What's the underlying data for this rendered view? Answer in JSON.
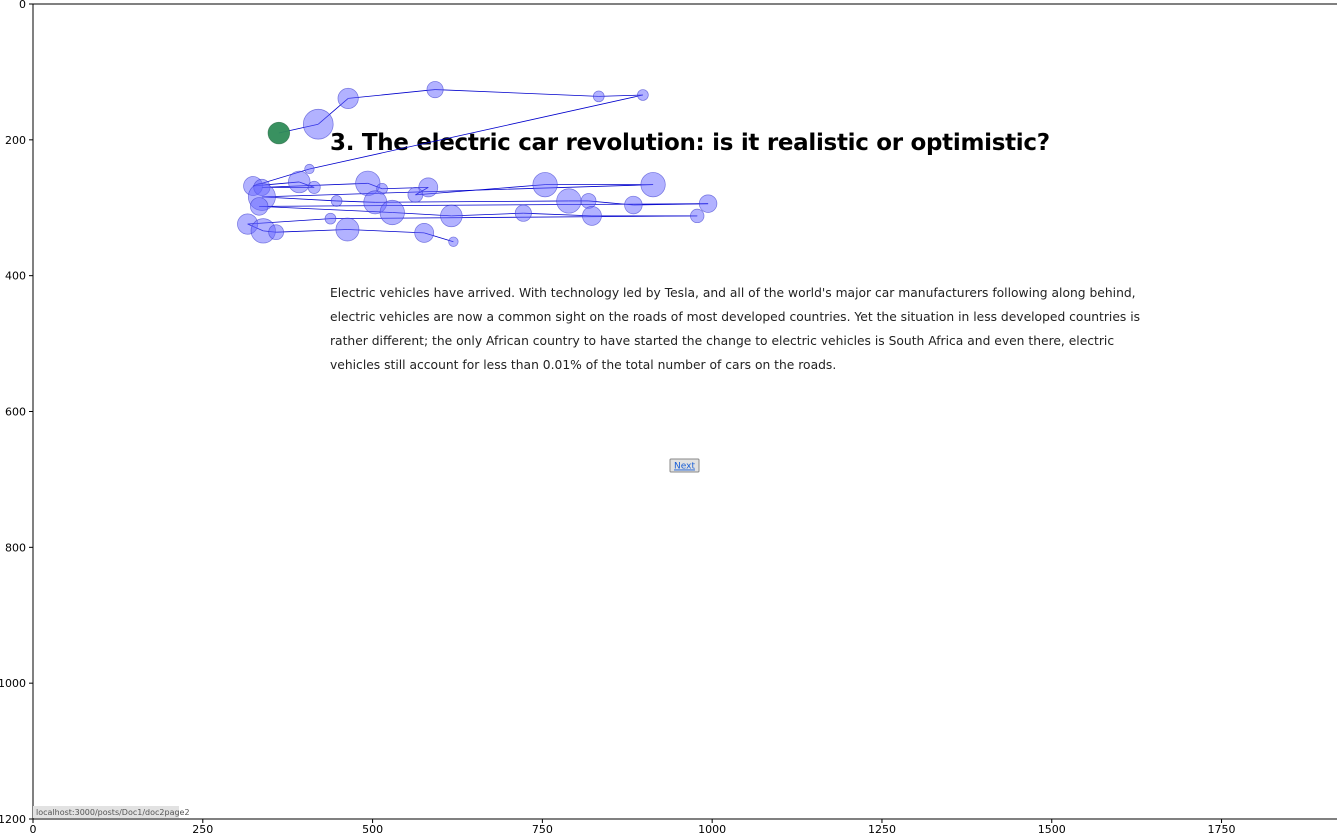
{
  "page": {
    "title": "3. The electric car revolution: is it realistic or optimistic?",
    "paragraph_lines": [
      "Electric vehicles have arrived. With technology led by Tesla, and all of the world's major car manufacturers following along behind,",
      "electric vehicles are now a common sight on the roads of most developed countries. Yet the situation in less developed countries is",
      "rather different; the only African country to have started the change to electric vehicles is South Africa and even there, electric",
      "vehicles still account for less than 0.01% of the total number of cars on the roads."
    ],
    "next_label": "Next",
    "status_url": "localhost:3000/posts/Doc1/doc2page2"
  },
  "chart_data": {
    "type": "scatter",
    "title": "",
    "xlabel": "",
    "ylabel": "",
    "xlim": [
      0,
      1920
    ],
    "ylim": [
      1200,
      0
    ],
    "y_inverted": true,
    "x_ticks": [
      0,
      250,
      500,
      750,
      1000,
      1250,
      1500,
      1750
    ],
    "y_ticks": [
      0,
      200,
      400,
      600,
      800,
      1000,
      1200
    ],
    "grid": false,
    "fixation_color": "#6666ff",
    "highlight_color": "#2e8b57",
    "path_color": "#0000cc",
    "highlight_index": 0,
    "series": [
      {
        "points": [
          {
            "x": 362,
            "y": 190,
            "r": 16
          },
          {
            "x": 420,
            "y": 177,
            "r": 22
          },
          {
            "x": 464,
            "y": 139,
            "r": 15
          },
          {
            "x": 592,
            "y": 126,
            "r": 12
          },
          {
            "x": 833,
            "y": 136,
            "r": 8
          },
          {
            "x": 898,
            "y": 134,
            "r": 8
          },
          {
            "x": 407,
            "y": 243,
            "r": 7
          },
          {
            "x": 324,
            "y": 268,
            "r": 14
          },
          {
            "x": 392,
            "y": 262,
            "r": 16
          },
          {
            "x": 414,
            "y": 270,
            "r": 9
          },
          {
            "x": 337,
            "y": 270,
            "r": 12
          },
          {
            "x": 493,
            "y": 264,
            "r": 18
          },
          {
            "x": 514,
            "y": 272,
            "r": 8
          },
          {
            "x": 582,
            "y": 270,
            "r": 14
          },
          {
            "x": 563,
            "y": 281,
            "r": 11
          },
          {
            "x": 754,
            "y": 266,
            "r": 18
          },
          {
            "x": 913,
            "y": 266,
            "r": 18
          },
          {
            "x": 337,
            "y": 284,
            "r": 20
          },
          {
            "x": 447,
            "y": 290,
            "r": 8
          },
          {
            "x": 504,
            "y": 292,
            "r": 17
          },
          {
            "x": 789,
            "y": 290,
            "r": 18
          },
          {
            "x": 818,
            "y": 290,
            "r": 11
          },
          {
            "x": 884,
            "y": 296,
            "r": 13
          },
          {
            "x": 994,
            "y": 294,
            "r": 13
          },
          {
            "x": 333,
            "y": 298,
            "r": 13
          },
          {
            "x": 529,
            "y": 307,
            "r": 18
          },
          {
            "x": 616,
            "y": 312,
            "r": 16
          },
          {
            "x": 722,
            "y": 308,
            "r": 12
          },
          {
            "x": 823,
            "y": 312,
            "r": 14
          },
          {
            "x": 978,
            "y": 312,
            "r": 10
          },
          {
            "x": 438,
            "y": 316,
            "r": 8
          },
          {
            "x": 316,
            "y": 324,
            "r": 15
          },
          {
            "x": 339,
            "y": 334,
            "r": 18
          },
          {
            "x": 358,
            "y": 336,
            "r": 11
          },
          {
            "x": 463,
            "y": 332,
            "r": 17
          },
          {
            "x": 576,
            "y": 337,
            "r": 14
          },
          {
            "x": 619,
            "y": 350,
            "r": 7
          }
        ]
      }
    ]
  }
}
